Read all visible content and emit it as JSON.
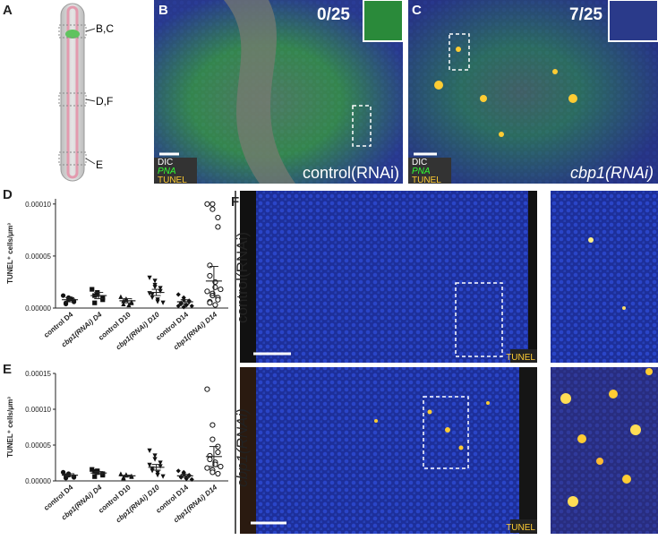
{
  "panels": {
    "A": {
      "label": "A",
      "annotations": [
        "B,C",
        "D,F",
        "E"
      ]
    },
    "B": {
      "label": "B",
      "count": "0/25",
      "stains": [
        "DIC",
        "PNA",
        "TUNEL"
      ],
      "condition": "control(RNAi)"
    },
    "C": {
      "label": "C",
      "count": "7/25",
      "stains": [
        "DIC",
        "PNA",
        "TUNEL"
      ],
      "condition": "cbp1(RNAi)"
    },
    "F": {
      "label": "F",
      "rows": [
        {
          "condition": "control(RNAi)",
          "stain": "TUNEL"
        },
        {
          "condition": "cbp1(RNAi)",
          "stain": "TUNEL"
        }
      ]
    }
  },
  "chart_data": [
    {
      "type": "scatter",
      "label": "D",
      "y_label": "TUNEL⁺ cells/μm³",
      "categories": [
        "control D4",
        "cbp1(RNAi) D4",
        "control D10",
        "cbp1(RNAi) D10",
        "control D14",
        "cbp1(RNAi) D14"
      ],
      "markers": [
        "circle",
        "square",
        "triangle",
        "triangle-down",
        "diamond",
        "open-circle"
      ],
      "color": "#111111",
      "values": [
        [
          1.2e-05,
          1e-05,
          8e-06,
          7e-06,
          6e-06,
          5e-06,
          4e-06,
          9e-06
        ],
        [
          1.8e-05,
          1.5e-05,
          1.3e-05,
          1e-05,
          8e-06,
          5e-06,
          1.2e-05
        ],
        [
          1.1e-05,
          9e-06,
          8e-06,
          6e-06,
          5e-06,
          4e-06,
          7e-06,
          3e-06
        ],
        [
          2.9e-05,
          2.6e-05,
          2.2e-05,
          1.9e-05,
          1.6e-05,
          1.3e-05,
          1e-05,
          8e-06,
          6e-06,
          5e-06,
          1.4e-05,
          2e-05
        ],
        [
          1.3e-05,
          1e-05,
          8e-06,
          7e-06,
          6e-06,
          5e-06,
          4e-06,
          3e-06,
          3e-06,
          2e-06,
          2e-06,
          1e-06
        ],
        [
          0.0001,
          0.0001,
          9.5e-05,
          8.7e-05,
          7.8e-05,
          4.1e-05,
          3.1e-05,
          2.5e-05,
          2e-05,
          1.8e-05,
          1.6e-05,
          1.4e-05,
          1.2e-05,
          1e-05,
          8e-06,
          6e-06,
          5e-06,
          3e-06
        ]
      ],
      "means": [
        8e-06,
        1.2e-05,
        7e-06,
        1.5e-05,
        6e-06,
        2.6e-05
      ],
      "errors": [
        2e-06,
        3e-06,
        2e-06,
        3e-06,
        2e-06,
        1.4e-05
      ],
      "ylim": [
        0,
        0.000105
      ],
      "yticks": [
        {
          "value": 0,
          "label": "0.00000"
        },
        5e-05,
        {
          "value": 0.0001,
          "label": "0.00010"
        }
      ]
    },
    {
      "type": "scatter",
      "label": "E",
      "y_label": "TUNEL⁺ cells/μm³",
      "categories": [
        "control D4",
        "cbp1(RNAi) D4",
        "control D10",
        "cbp1(RNAi) D10",
        "control D14",
        "cbp1(RNAi) D14"
      ],
      "markers": [
        "circle",
        "square",
        "triangle",
        "triangle-down",
        "diamond",
        "open-circle"
      ],
      "color": "#111111",
      "values": [
        [
          1.2e-05,
          1e-05,
          8e-06,
          6e-06,
          5e-06,
          4e-06,
          7e-06
        ],
        [
          1.6e-05,
          1.4e-05,
          1.2e-05,
          1e-05,
          8e-06,
          6e-06,
          1.3e-05
        ],
        [
          1e-05,
          9e-06,
          8e-06,
          7e-06,
          6e-06,
          5e-06,
          4e-06
        ],
        [
          4.2e-05,
          3.5e-05,
          3e-05,
          2.5e-05,
          2e-05,
          1.7e-05,
          1.4e-05,
          1.1e-05,
          8e-06,
          6e-06,
          2.2e-05
        ],
        [
          1.4e-05,
          1.2e-05,
          1e-05,
          8e-06,
          7e-06,
          6e-06,
          5e-06,
          4e-06,
          3e-06,
          2e-06
        ],
        [
          0.000128,
          7.8e-05,
          5.8e-05,
          4.8e-05,
          4e-05,
          3.5e-05,
          3e-05,
          2.6e-05,
          2.3e-05,
          2e-05,
          1.8e-05,
          1.5e-05,
          1.2e-05,
          1e-05
        ]
      ],
      "means": [
        8e-06,
        1.1e-05,
        7e-06,
        1.9e-05,
        7e-06,
        3.4e-05
      ],
      "errors": [
        2e-06,
        2e-06,
        1e-06,
        4e-06,
        2e-06,
        1.4e-05
      ],
      "ylim": [
        0,
        0.00015
      ],
      "yticks": [
        {
          "value": 0,
          "label": "0.00000"
        },
        5e-05,
        {
          "value": 0.0001,
          "label": "0.00010"
        },
        {
          "value": 0.00015,
          "label": "0.00015"
        }
      ]
    }
  ]
}
